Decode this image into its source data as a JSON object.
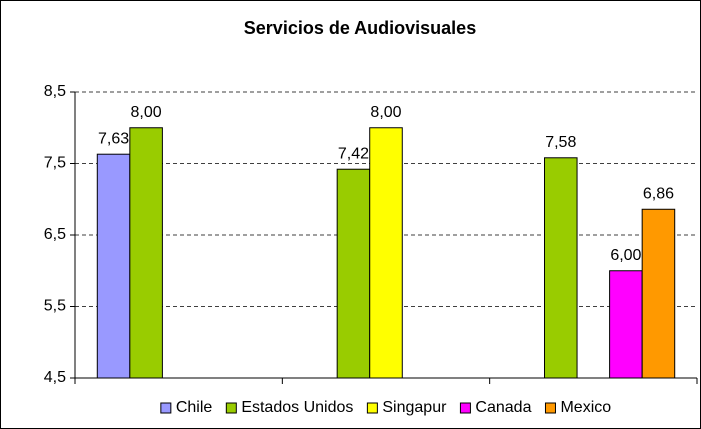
{
  "chart_data": {
    "type": "bar",
    "title": "Servicios de Audiovisuales",
    "categories": [
      null,
      null,
      null
    ],
    "series": [
      {
        "name": "Chile",
        "color": "#9999ff",
        "values": [
          7.63,
          null,
          null
        ],
        "value_labels": [
          "7,63",
          null,
          null
        ]
      },
      {
        "name": "Estados Unidos",
        "color": "#99cc00",
        "values": [
          8.0,
          7.42,
          7.58
        ],
        "value_labels": [
          "8,00",
          "7,42",
          "7,58"
        ]
      },
      {
        "name": "Singapur",
        "color": "#ffff00",
        "values": [
          null,
          8.0,
          null
        ],
        "value_labels": [
          null,
          "8,00",
          null
        ]
      },
      {
        "name": "Canada",
        "color": "#ff00ff",
        "values": [
          null,
          null,
          6.0
        ],
        "value_labels": [
          null,
          null,
          "6,00"
        ]
      },
      {
        "name": "Mexico",
        "color": "#ff9900",
        "values": [
          null,
          null,
          6.86
        ],
        "value_labels": [
          null,
          null,
          "6,86"
        ]
      }
    ],
    "ylim": [
      4.5,
      8.5
    ],
    "yticks": [
      {
        "value": 4.5,
        "label": "4,5"
      },
      {
        "value": 5.5,
        "label": "5,5"
      },
      {
        "value": 6.5,
        "label": "6,5"
      },
      {
        "value": 7.5,
        "label": "7,5"
      },
      {
        "value": 8.5,
        "label": "8,5"
      }
    ],
    "grid": true,
    "legend": "bottom"
  }
}
